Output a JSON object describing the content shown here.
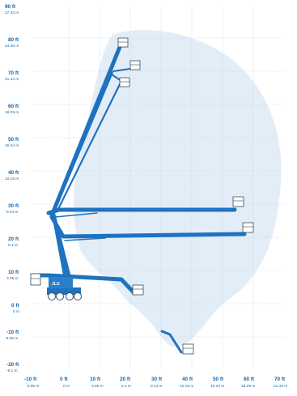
{
  "axes": {
    "y_ticks": [
      {
        "ft": "90 ft",
        "m": "27.43 m"
      },
      {
        "ft": "80 ft",
        "m": "24.38 m"
      },
      {
        "ft": "70 ft",
        "m": "21.34 m"
      },
      {
        "ft": "60 ft",
        "m": "18.29 m"
      },
      {
        "ft": "50 ft",
        "m": "15.24 m"
      },
      {
        "ft": "40 ft",
        "m": "12.19 m"
      },
      {
        "ft": "30 ft",
        "m": "9.14 m"
      },
      {
        "ft": "20 ft",
        "m": "6.1 m"
      },
      {
        "ft": "10 ft",
        "m": "3.05 m"
      },
      {
        "ft": "0 ft",
        "m": "0 m"
      },
      {
        "ft": "-10 ft",
        "m": "-3.05 m"
      },
      {
        "ft": "-20 ft",
        "m": "-6.1 m"
      }
    ],
    "x_ticks": [
      {
        "ft": "-10 ft",
        "m": "-3.05 m"
      },
      {
        "ft": "0 ft",
        "m": "0 m"
      },
      {
        "ft": "10 ft",
        "m": "3.05 m"
      },
      {
        "ft": "20 ft",
        "m": "6.1 m"
      },
      {
        "ft": "30 ft",
        "m": "9.14 m"
      },
      {
        "ft": "40 ft",
        "m": "12.19 m"
      },
      {
        "ft": "50 ft",
        "m": "15.24 m"
      },
      {
        "ft": "60 ft",
        "m": "18.29 m"
      },
      {
        "ft": "70 ft",
        "m": "21.34 m"
      }
    ],
    "x_range_ft": [
      -10,
      70
    ],
    "y_range_ft": [
      -20,
      90
    ]
  },
  "working_envelope_color": "#e3edf7",
  "boom_color": "#1e72c0",
  "machine_label": "JLG"
}
